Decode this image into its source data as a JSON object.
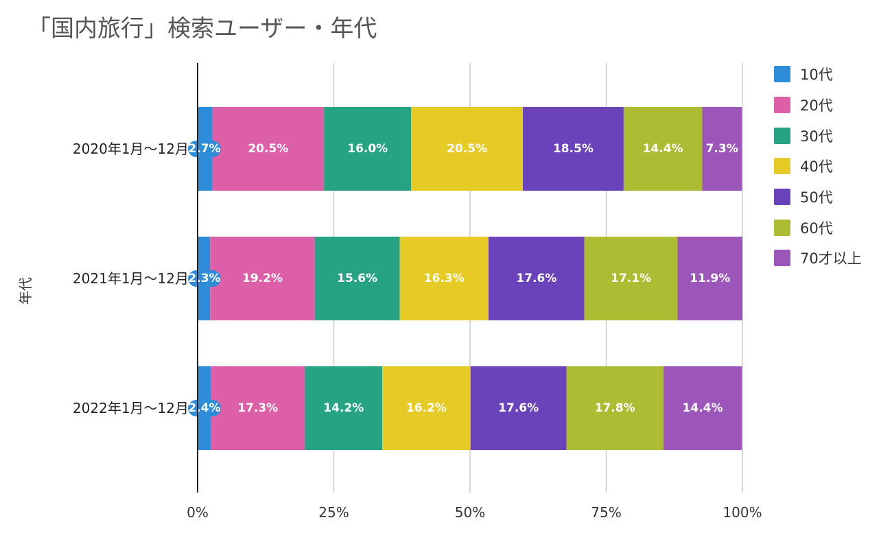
{
  "chart_data": {
    "type": "bar",
    "orientation": "horizontal",
    "stacked": "percent",
    "title": "「国内旅行」検索ユーザー・年代",
    "ylabel": "年代",
    "xlabel": "",
    "xlim": [
      0,
      100
    ],
    "xticks": [
      "0%",
      "25%",
      "50%",
      "75%",
      "100%"
    ],
    "grid": true,
    "legend_position": "right",
    "categories": [
      "2020年1月～12月",
      "2021年1月～12月",
      "2022年1月～12月"
    ],
    "series": [
      {
        "name": "10代",
        "color": "#2E8DD8",
        "values": [
          2.7,
          2.3,
          2.4
        ],
        "labels": [
          "2.7%",
          "2.3%",
          "2.4%"
        ]
      },
      {
        "name": "20代",
        "color": "#DD5FA8",
        "values": [
          20.5,
          19.2,
          17.3
        ],
        "labels": [
          "20.5%",
          "19.2%",
          "17.3%"
        ]
      },
      {
        "name": "30代",
        "color": "#26A382",
        "values": [
          16.0,
          15.6,
          14.2
        ],
        "labels": [
          "16.0%",
          "15.6%",
          "14.2%"
        ]
      },
      {
        "name": "40代",
        "color": "#E6CA25",
        "values": [
          20.5,
          16.3,
          16.2
        ],
        "labels": [
          "20.5%",
          "16.3%",
          "16.2%"
        ]
      },
      {
        "name": "50代",
        "color": "#6A43BB",
        "values": [
          18.5,
          17.6,
          17.6
        ],
        "labels": [
          "18.5%",
          "17.6%",
          "17.6%"
        ]
      },
      {
        "name": "60代",
        "color": "#ACBD33",
        "values": [
          14.4,
          17.1,
          17.8
        ],
        "labels": [
          "14.4%",
          "17.1%",
          "17.8%"
        ]
      },
      {
        "name": "70才以上",
        "color": "#9C56BA",
        "values": [
          7.3,
          11.9,
          14.4
        ],
        "labels": [
          "7.3%",
          "11.9%",
          "14.4%"
        ]
      }
    ]
  }
}
